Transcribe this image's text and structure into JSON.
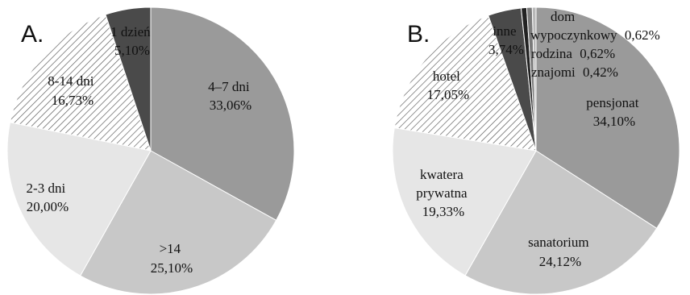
{
  "chart_data": [
    {
      "type": "pie",
      "panel_label": "A.",
      "start": "top, clockwise",
      "slices": [
        {
          "name": "4–7 dni",
          "pct_label": "33,06%",
          "value": 33.06,
          "color": "#9a9a9a",
          "pattern": "solid"
        },
        {
          "name": ">14",
          "pct_label": "25,10%",
          "value": 25.1,
          "color": "#c8c8c8",
          "pattern": "solid"
        },
        {
          "name": "2-3 dni",
          "pct_label": "20,00%",
          "value": 20.0,
          "color": "#e6e6e6",
          "pattern": "solid"
        },
        {
          "name": "8-14 dni",
          "pct_label": "16,73%",
          "value": 16.73,
          "color": "#ffffff",
          "pattern": "diagonal-hatch"
        },
        {
          "name": "1 dzień",
          "pct_label": "5,10%",
          "value": 5.1,
          "color": "#4a4a4a",
          "pattern": "solid"
        }
      ]
    },
    {
      "type": "pie",
      "panel_label": "B.",
      "start": "top, clockwise",
      "slices": [
        {
          "name": "pensjonat",
          "pct_label": "34,10%",
          "value": 34.1,
          "color": "#9a9a9a",
          "pattern": "solid"
        },
        {
          "name": "sanatorium",
          "pct_label": "24,12%",
          "value": 24.12,
          "color": "#c8c8c8",
          "pattern": "solid"
        },
        {
          "name": "kwatera prywatna",
          "pct_label": "19,33%",
          "value": 19.33,
          "color": "#e6e6e6",
          "pattern": "solid"
        },
        {
          "name": "hotel",
          "pct_label": "17,05%",
          "value": 17.05,
          "color": "#ffffff",
          "pattern": "diagonal-hatch"
        },
        {
          "name": "inne",
          "pct_label": "3,74%",
          "value": 3.74,
          "color": "#4a4a4a",
          "pattern": "solid"
        },
        {
          "name": "dom wypoczynkowy",
          "pct_label": "0,62%",
          "value": 0.62,
          "color": "#222222",
          "pattern": "solid"
        },
        {
          "name": "rodzina",
          "pct_label": "0,62%",
          "value": 0.62,
          "color": "#7a7a7a",
          "pattern": "solid"
        },
        {
          "name": "znajomi",
          "pct_label": "0,42%",
          "value": 0.42,
          "color": "#b8b8b8",
          "pattern": "solid"
        }
      ]
    }
  ]
}
